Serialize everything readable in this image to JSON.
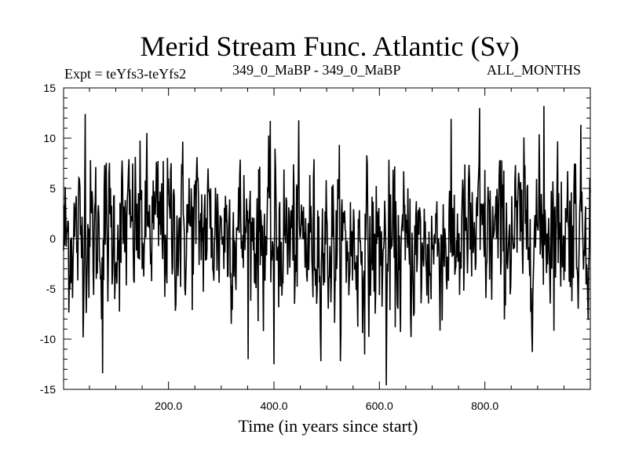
{
  "chart_data": {
    "type": "line",
    "title": "Merid Stream Func. Atlantic (Sv)",
    "expt_label": "Expt = teYfs3-teYfs2",
    "period_label": "349_0_MaBP - 349_0_MaBP",
    "months_label": "ALL_MONTHS",
    "xlabel": "Time (in years since start)",
    "ylabel": "",
    "xlim": [
      1,
      1000
    ],
    "ylim": [
      -15,
      15
    ],
    "x_ticks": [
      200,
      400,
      600,
      800
    ],
    "x_tick_labels": [
      "200.0",
      "400.0",
      "600.0",
      "800.0"
    ],
    "y_ticks": [
      15,
      10,
      5,
      0,
      -5,
      -10,
      -15
    ],
    "y_tick_labels": [
      "15",
      "10",
      "5",
      "0",
      "-5",
      "-10",
      "-15"
    ],
    "zero_line": true,
    "series": [
      {
        "name": "teYfs3-teYfs2",
        "color": "#000000",
        "x_start": 1,
        "x_step": 1,
        "n_points": 1000,
        "mean": 0.0,
        "std": 4.0,
        "notable_points": [
          {
            "x": 42,
            "y": 12.4
          },
          {
            "x": 75,
            "y": -13.4
          },
          {
            "x": 400,
            "y": -12.5
          },
          {
            "x": 613,
            "y": -14.6
          },
          {
            "x": 790,
            "y": 13.0
          },
          {
            "x": 912,
            "y": 13.2
          }
        ]
      }
    ]
  }
}
